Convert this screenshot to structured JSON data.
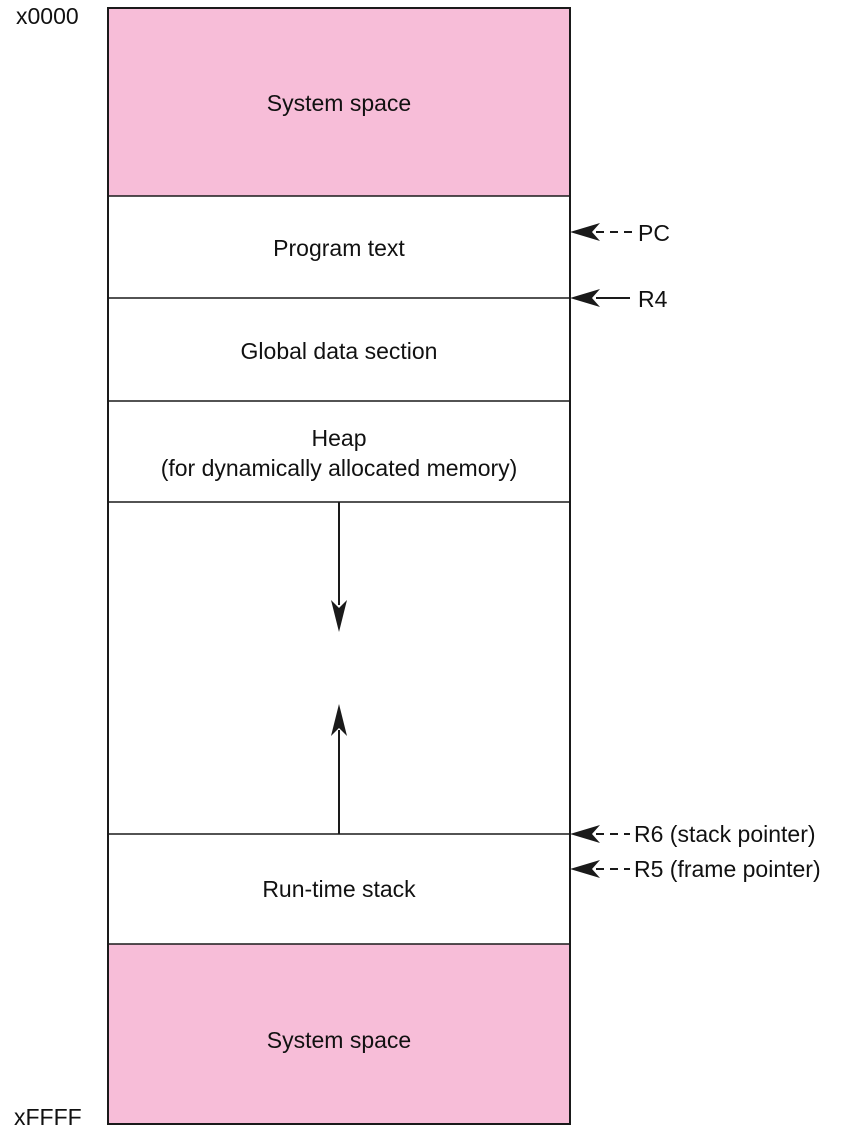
{
  "diagram": {
    "colors": {
      "system_fill": "#f7bdd8",
      "outline": "#1a1a1a",
      "background": "#ffffff"
    },
    "addresses": {
      "top": "x0000",
      "bottom": "xFFFF"
    },
    "segments": [
      {
        "id": "system-space-top",
        "label": "System space",
        "shaded": true
      },
      {
        "id": "program-text",
        "label": "Program text",
        "shaded": false
      },
      {
        "id": "global-data-section",
        "label": "Global data section",
        "shaded": false
      },
      {
        "id": "heap",
        "label": "Heap\n(for dynamically allocated memory)",
        "shaded": false
      },
      {
        "id": "free-space",
        "label": "",
        "shaded": false
      },
      {
        "id": "run-time-stack",
        "label": "Run-time stack",
        "shaded": false
      },
      {
        "id": "system-space-bottom",
        "label": "System space",
        "shaded": true
      }
    ],
    "growth_arrows": [
      {
        "from": "heap",
        "direction": "down"
      },
      {
        "from": "run-time-stack",
        "direction": "up"
      }
    ],
    "pointers": [
      {
        "id": "pc",
        "label": "PC",
        "dashed": true
      },
      {
        "id": "r4",
        "label": "R4",
        "dashed": false
      },
      {
        "id": "r6",
        "label": "R6 (stack pointer)",
        "dashed": true
      },
      {
        "id": "r5",
        "label": "R5 (frame pointer)",
        "dashed": true
      }
    ]
  }
}
